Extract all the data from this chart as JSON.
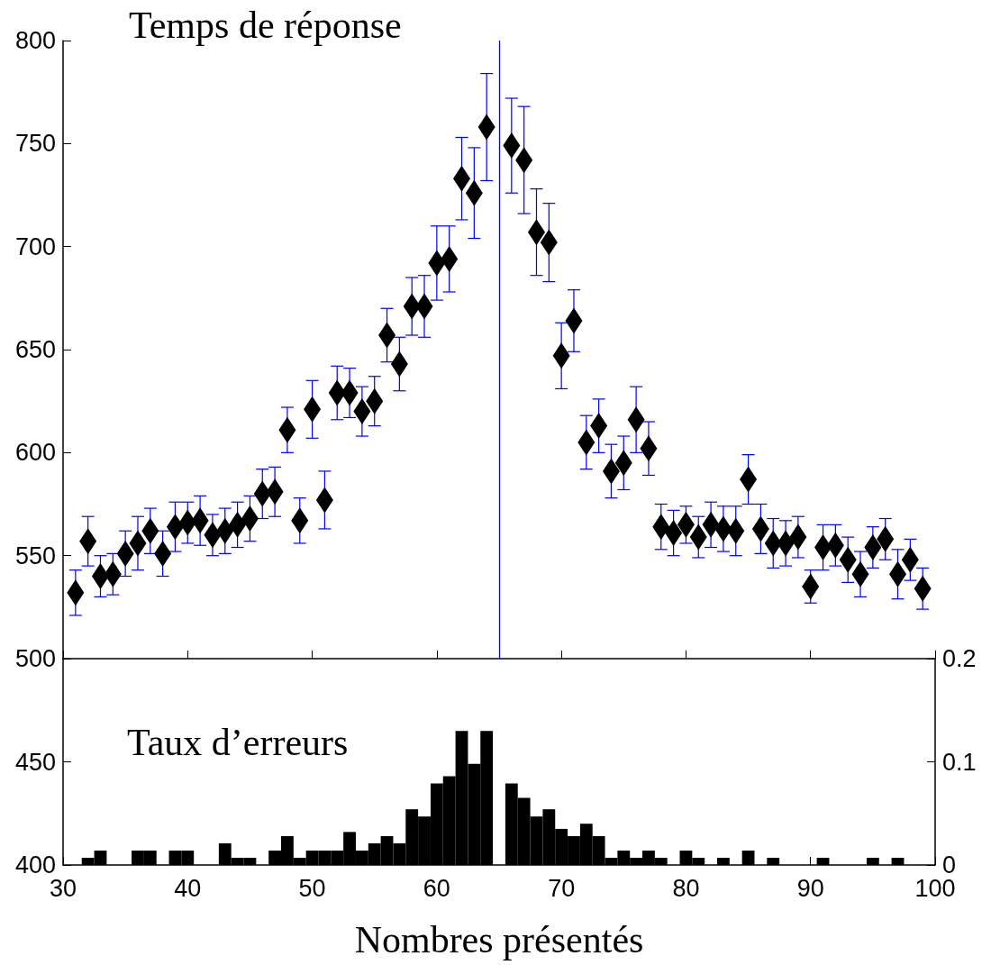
{
  "chart_data": [
    {
      "type": "scatter",
      "title": "Temps de réponse",
      "xlim": [
        30,
        100
      ],
      "xticks": [
        30,
        40,
        50,
        60,
        70,
        80,
        90,
        100
      ],
      "ylim": [
        500,
        800
      ],
      "yticks": [
        550,
        600,
        650,
        700,
        750,
        800
      ],
      "tick_labels": "y",
      "marker": "diamond",
      "x": [
        31,
        32,
        33,
        34,
        35,
        36,
        37,
        38,
        39,
        40,
        41,
        42,
        43,
        44,
        45,
        46,
        47,
        48,
        49,
        50,
        51,
        52,
        53,
        54,
        55,
        56,
        57,
        58,
        59,
        60,
        61,
        62,
        63,
        64,
        66,
        67,
        68,
        69,
        70,
        71,
        72,
        73,
        74,
        75,
        76,
        77,
        78,
        79,
        80,
        81,
        82,
        83,
        84,
        85,
        86,
        87,
        88,
        89,
        90,
        91,
        92,
        93,
        94,
        95,
        96,
        97,
        98,
        99
      ],
      "series": [
        {
          "color": "#000000",
          "values": [
            532,
            557,
            540,
            541,
            551,
            556,
            562,
            551,
            564,
            566,
            567,
            560,
            562,
            565,
            568,
            580,
            581,
            611,
            567,
            621,
            577,
            629,
            629,
            620,
            625,
            657,
            643,
            671,
            671,
            692,
            694,
            733,
            726,
            758,
            749,
            742,
            707,
            702,
            647,
            664,
            605,
            613,
            591,
            595,
            616,
            602,
            564,
            561,
            565,
            559,
            565,
            563,
            562,
            587,
            563,
            556,
            556,
            559,
            535,
            554,
            555,
            548,
            541,
            554,
            558,
            541,
            548,
            534
          ],
          "errors": [
            11,
            12,
            10,
            10,
            11,
            13,
            11,
            11,
            12,
            10,
            12,
            10,
            11,
            11,
            11,
            12,
            12,
            11,
            11,
            14,
            14,
            13,
            12,
            12,
            12,
            13,
            13,
            14,
            15,
            18,
            16,
            20,
            22,
            26,
            23,
            26,
            21,
            19,
            16,
            15,
            13,
            13,
            13,
            13,
            16,
            13,
            11,
            11,
            9,
            10,
            11,
            11,
            12,
            12,
            12,
            12,
            11,
            10,
            8,
            11,
            10,
            11,
            11,
            10,
            10,
            12,
            10,
            10
          ]
        }
      ],
      "ref_lines": [
        {
          "axis": "x",
          "value": 65,
          "color": "#0000ff"
        }
      ]
    },
    {
      "type": "bar",
      "title": "Taux d’erreurs",
      "xlabel": "Nombres présentés",
      "xlim": [
        30,
        100
      ],
      "xticks": [
        30,
        40,
        50,
        60,
        70,
        80,
        90,
        100
      ],
      "ylim": [
        400,
        500
      ],
      "yticks": [
        400,
        450,
        500
      ],
      "y2lim": [
        0,
        0.2
      ],
      "y2ticks": [
        0,
        0.1,
        0.2
      ],
      "x": [
        32,
        33,
        36,
        37,
        39,
        40,
        43,
        44,
        45,
        47,
        48,
        49,
        50,
        51,
        52,
        53,
        54,
        55,
        56,
        57,
        58,
        59,
        60,
        61,
        62,
        63,
        64,
        66,
        67,
        68,
        69,
        70,
        71,
        72,
        73,
        74,
        75,
        76,
        77,
        78,
        80,
        81,
        83,
        85,
        87,
        91,
        95,
        97
      ],
      "series": [
        {
          "color": "#000000",
          "axis": "y2",
          "values": [
            0.007,
            0.014,
            0.014,
            0.014,
            0.014,
            0.014,
            0.021,
            0.007,
            0.007,
            0.014,
            0.028,
            0.007,
            0.014,
            0.014,
            0.014,
            0.032,
            0.014,
            0.021,
            0.028,
            0.021,
            0.054,
            0.047,
            0.079,
            0.086,
            0.13,
            0.098,
            0.13,
            0.079,
            0.065,
            0.047,
            0.054,
            0.035,
            0.028,
            0.04,
            0.028,
            0.007,
            0.014,
            0.007,
            0.014,
            0.007,
            0.014,
            0.007,
            0.007,
            0.014,
            0.007,
            0.007,
            0.007,
            0.007
          ]
        }
      ]
    }
  ]
}
